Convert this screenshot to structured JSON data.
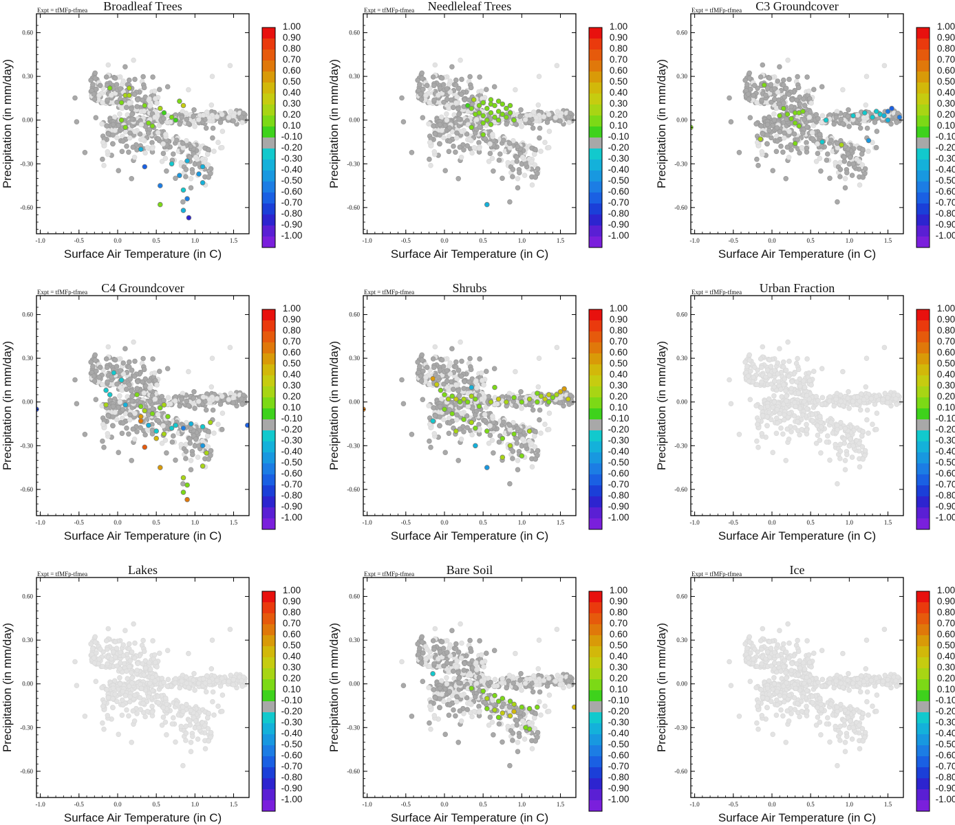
{
  "figure": {
    "experiment_label": "Expt = tfMFp-tfmea",
    "xlabel": "Surface Air Temperature (in C)",
    "ylabel": "Precipitation (in mm/day)",
    "x_ticks": [
      "-1.0",
      "-0.5",
      "0.0",
      "0.5",
      "1.0",
      "1.5"
    ],
    "y_ticks": [
      "0.60",
      "0.30",
      "0.00",
      "-0.30",
      "-0.60"
    ],
    "colorbar": {
      "labels": [
        "1.00",
        "0.90",
        "0.80",
        "0.70",
        "0.60",
        "0.50",
        "0.40",
        "0.30",
        "0.20",
        "0.10",
        "-0.10",
        "-0.20",
        "-0.30",
        "-0.40",
        "-0.50",
        "-0.60",
        "-0.70",
        "-0.80",
        "-0.90",
        "-1.00"
      ],
      "colors": [
        "#e8110e",
        "#ea3a0d",
        "#e65a0c",
        "#e0780a",
        "#d99a08",
        "#d2b80a",
        "#c6cc10",
        "#a8d514",
        "#7cd916",
        "#3ed21c",
        "#a8a8a8",
        "#12c9cd",
        "#14b1da",
        "#1898e0",
        "#1c7de4",
        "#1a60e3",
        "#1b3fd8",
        "#2d24cf",
        "#5a1fd4",
        "#7a1fdc"
      ]
    },
    "background_color": "#e3e3e3",
    "neutral_color": "#a9a9a9"
  },
  "chart_data": [
    {
      "type": "scatter",
      "title": "Broadleaf Trees",
      "xlabel": "Surface Air Temperature (in C)",
      "ylabel": "Precipitation (in mm/day)",
      "xlim": [
        -1.05,
        1.7
      ],
      "ylim": [
        -0.78,
        0.73
      ],
      "neutral_fraction": 0.65,
      "colored_points": [
        [
          0.15,
          0.22,
          0.35
        ],
        [
          -0.1,
          0.22,
          0.2
        ],
        [
          0.1,
          0.17,
          0.3
        ],
        [
          0.15,
          0.17,
          0.35
        ],
        [
          0.05,
          0.12,
          0.2
        ],
        [
          0.35,
          0.1,
          0.2
        ],
        [
          0.55,
          0.08,
          0.3
        ],
        [
          0.6,
          0.05,
          0.1
        ],
        [
          0.8,
          0.13,
          0.25
        ],
        [
          0.85,
          0.1,
          0.4
        ],
        [
          0.4,
          -0.02,
          0.2
        ],
        [
          0.7,
          0.02,
          0.2
        ],
        [
          0.75,
          0.0,
          0.1
        ],
        [
          0.45,
          -0.04,
          0.2
        ],
        [
          0.1,
          -0.05,
          0.2
        ],
        [
          0.05,
          0.0,
          0.2
        ],
        [
          0.3,
          -0.2,
          -0.3
        ],
        [
          0.35,
          -0.32,
          -0.6
        ],
        [
          0.7,
          -0.3,
          -0.2
        ],
        [
          0.9,
          -0.28,
          -0.3
        ],
        [
          1.1,
          -0.32,
          -0.3
        ],
        [
          1.05,
          -0.37,
          -0.4
        ],
        [
          0.8,
          -0.38,
          -0.4
        ],
        [
          1.1,
          -0.43,
          -0.3
        ],
        [
          0.55,
          -0.45,
          -0.5
        ],
        [
          0.85,
          -0.48,
          -0.2
        ],
        [
          0.9,
          -0.54,
          -0.5
        ],
        [
          0.55,
          -0.58,
          0.2
        ],
        [
          0.85,
          -0.62,
          -0.3
        ],
        [
          0.92,
          -0.67,
          -0.8
        ]
      ]
    },
    {
      "type": "scatter",
      "title": "Needleleaf Trees",
      "xlabel": "Surface Air Temperature (in C)",
      "ylabel": "Precipitation (in mm/day)",
      "xlim": [
        -1.05,
        1.7
      ],
      "ylim": [
        -0.78,
        0.73
      ],
      "neutral_fraction": 0.65,
      "colored_points": [
        [
          0.3,
          0.1,
          0.1
        ],
        [
          0.35,
          0.08,
          0.2
        ],
        [
          0.4,
          0.04,
          0.2
        ],
        [
          0.45,
          0.1,
          0.2
        ],
        [
          0.5,
          0.12,
          0.2
        ],
        [
          0.5,
          0.03,
          0.2
        ],
        [
          0.55,
          0.08,
          0.2
        ],
        [
          0.55,
          0.0,
          0.2
        ],
        [
          0.6,
          0.11,
          0.2
        ],
        [
          0.6,
          0.05,
          0.2
        ],
        [
          0.65,
          0.02,
          0.2
        ],
        [
          0.65,
          0.1,
          0.2
        ],
        [
          0.7,
          0.06,
          0.2
        ],
        [
          0.7,
          0.0,
          0.2
        ],
        [
          0.75,
          0.11,
          0.2
        ],
        [
          0.75,
          0.04,
          0.2
        ],
        [
          0.8,
          0.08,
          0.2
        ],
        [
          0.8,
          0.02,
          0.2
        ],
        [
          0.85,
          0.05,
          0.2
        ],
        [
          0.85,
          0.1,
          0.2
        ],
        [
          0.9,
          0.0,
          0.2
        ],
        [
          0.45,
          0.05,
          0.2
        ],
        [
          0.5,
          -0.02,
          0.2
        ],
        [
          0.6,
          -0.03,
          0.2
        ],
        [
          0.35,
          -0.05,
          0.2
        ],
        [
          0.5,
          -0.1,
          0.2
        ],
        [
          0.38,
          0.14,
          0.3
        ],
        [
          0.6,
          0.14,
          0.2
        ],
        [
          0.7,
          0.13,
          0.2
        ],
        [
          0.55,
          -0.58,
          -0.3
        ]
      ]
    },
    {
      "type": "scatter",
      "title": "C3 Groundcover",
      "xlabel": "Surface Air Temperature (in C)",
      "ylabel": "Precipitation (in mm/day)",
      "xlim": [
        -1.05,
        1.7
      ],
      "ylim": [
        -0.78,
        0.73
      ],
      "neutral_fraction": 0.78,
      "colored_points": [
        [
          -0.1,
          0.24,
          0.2
        ],
        [
          0.15,
          0.08,
          0.2
        ],
        [
          0.2,
          0.04,
          0.2
        ],
        [
          0.3,
          0.05,
          0.2
        ],
        [
          0.35,
          0.05,
          0.2
        ],
        [
          0.4,
          0.06,
          0.2
        ],
        [
          0.1,
          0.03,
          0.2
        ],
        [
          0.25,
          0.01,
          0.2
        ],
        [
          0.3,
          -0.02,
          0.2
        ],
        [
          0.35,
          -0.04,
          0.2
        ],
        [
          -0.15,
          -0.13,
          0.3
        ],
        [
          0.3,
          -0.16,
          0.2
        ],
        [
          0.9,
          -0.17,
          0.3
        ],
        [
          -1.05,
          -0.05,
          0.2
        ],
        [
          1.25,
          -0.14,
          -0.4
        ],
        [
          1.2,
          0.05,
          -0.2
        ],
        [
          1.3,
          0.02,
          -0.2
        ],
        [
          1.4,
          0.04,
          -0.2
        ],
        [
          1.45,
          0.03,
          -0.3
        ],
        [
          1.5,
          0.06,
          -0.5
        ],
        [
          1.55,
          0.08,
          -0.6
        ],
        [
          1.5,
          0.0,
          -0.3
        ],
        [
          1.65,
          0.02,
          -0.5
        ],
        [
          1.35,
          0.06,
          -0.2
        ],
        [
          1.05,
          0.03,
          -0.2
        ],
        [
          0.7,
          0.0,
          -0.2
        ],
        [
          0.65,
          -0.15,
          -0.2
        ]
      ]
    },
    {
      "type": "scatter",
      "title": "C4 Groundcover",
      "xlabel": "Surface Air Temperature (in C)",
      "ylabel": "Precipitation (in mm/day)",
      "xlim": [
        -1.05,
        1.7
      ],
      "ylim": [
        -0.78,
        0.73
      ],
      "neutral_fraction": 0.7,
      "colored_points": [
        [
          -0.15,
          0.08,
          -0.2
        ],
        [
          -0.05,
          0.2,
          -0.2
        ],
        [
          0.05,
          0.15,
          -0.2
        ],
        [
          -0.1,
          0.05,
          -0.2
        ],
        [
          -0.15,
          -0.02,
          0.3
        ],
        [
          0.1,
          -0.02,
          -0.3
        ],
        [
          0.25,
          0.05,
          0.2
        ],
        [
          0.3,
          -0.03,
          0.2
        ],
        [
          0.35,
          -0.06,
          0.3
        ],
        [
          0.3,
          -0.1,
          0.6
        ],
        [
          0.3,
          -0.13,
          0.7
        ],
        [
          0.45,
          -0.08,
          0.2
        ],
        [
          0.55,
          -0.04,
          0.2
        ],
        [
          0.6,
          -0.02,
          0.3
        ],
        [
          0.65,
          -0.1,
          0.2
        ],
        [
          0.4,
          -0.16,
          -0.3
        ],
        [
          0.5,
          -0.2,
          -0.2
        ],
        [
          0.6,
          -0.22,
          0.3
        ],
        [
          0.7,
          -0.18,
          -0.2
        ],
        [
          0.75,
          -0.16,
          -0.2
        ],
        [
          0.85,
          -0.18,
          -0.5
        ],
        [
          0.95,
          -0.15,
          -0.3
        ],
        [
          1.1,
          -0.17,
          -0.2
        ],
        [
          1.2,
          -0.14,
          0.3
        ],
        [
          1.1,
          -0.3,
          -0.4
        ],
        [
          1.15,
          -0.35,
          0.3
        ],
        [
          1.1,
          -0.44,
          0.3
        ],
        [
          0.85,
          -0.52,
          0.3
        ],
        [
          0.9,
          -0.57,
          0.2
        ],
        [
          0.85,
          -0.62,
          0.2
        ],
        [
          0.9,
          -0.67,
          0.7
        ],
        [
          0.5,
          -0.25,
          0.5
        ],
        [
          0.35,
          -0.31,
          0.8
        ],
        [
          0.55,
          -0.45,
          0.6
        ],
        [
          -1.05,
          -0.05,
          -0.7
        ],
        [
          1.68,
          -0.16,
          -0.6
        ]
      ]
    },
    {
      "type": "scatter",
      "title": "Shrubs",
      "xlabel": "Surface Air Temperature (in C)",
      "ylabel": "Precipitation (in mm/day)",
      "xlim": [
        -1.05,
        1.7
      ],
      "ylim": [
        -0.78,
        0.73
      ],
      "neutral_fraction": 0.66,
      "colored_points": [
        [
          -0.15,
          0.16,
          0.6
        ],
        [
          -0.1,
          0.12,
          0.4
        ],
        [
          -0.05,
          0.08,
          0.2
        ],
        [
          0.0,
          0.05,
          0.2
        ],
        [
          0.05,
          0.02,
          0.3
        ],
        [
          0.1,
          0.04,
          0.2
        ],
        [
          0.15,
          0.02,
          0.4
        ],
        [
          0.2,
          0.0,
          0.2
        ],
        [
          0.25,
          0.02,
          0.3
        ],
        [
          0.3,
          0.0,
          0.2
        ],
        [
          0.35,
          0.04,
          0.3
        ],
        [
          0.4,
          0.02,
          0.2
        ],
        [
          0.0,
          -0.05,
          0.2
        ],
        [
          0.1,
          -0.08,
          0.2
        ],
        [
          0.25,
          -0.12,
          0.2
        ],
        [
          0.35,
          -0.14,
          0.3
        ],
        [
          0.4,
          -0.18,
          0.2
        ],
        [
          0.45,
          -0.03,
          0.2
        ],
        [
          0.6,
          0.0,
          0.3
        ],
        [
          0.7,
          0.02,
          0.4
        ],
        [
          0.8,
          0.0,
          0.3
        ],
        [
          0.9,
          0.03,
          0.2
        ],
        [
          1.0,
          0.0,
          0.2
        ],
        [
          1.1,
          0.02,
          0.3
        ],
        [
          1.2,
          0.0,
          0.2
        ],
        [
          1.25,
          0.04,
          0.3
        ],
        [
          1.3,
          0.02,
          0.4
        ],
        [
          1.35,
          0.05,
          0.4
        ],
        [
          1.4,
          0.03,
          0.2
        ],
        [
          1.45,
          0.05,
          0.3
        ],
        [
          1.5,
          0.07,
          0.5
        ],
        [
          1.55,
          0.09,
          0.6
        ],
        [
          1.6,
          0.02,
          0.4
        ],
        [
          1.2,
          0.06,
          0.2
        ],
        [
          1.35,
          0.0,
          0.2
        ],
        [
          0.65,
          0.1,
          0.2
        ],
        [
          0.35,
          0.1,
          -0.3
        ],
        [
          -0.15,
          -0.13,
          -0.2
        ],
        [
          0.15,
          -0.2,
          0.3
        ],
        [
          0.4,
          -0.3,
          -0.3
        ],
        [
          0.55,
          -0.2,
          0.2
        ],
        [
          0.75,
          -0.25,
          0.2
        ],
        [
          0.9,
          -0.22,
          0.2
        ],
        [
          1.1,
          -0.2,
          0.3
        ],
        [
          0.85,
          -0.3,
          0.3
        ],
        [
          1.0,
          -0.37,
          0.2
        ],
        [
          0.75,
          -0.38,
          0.3
        ],
        [
          0.55,
          -0.45,
          -0.4
        ],
        [
          -1.05,
          -0.05,
          0.7
        ]
      ]
    },
    {
      "type": "scatter",
      "title": "Urban Fraction",
      "xlabel": "Surface Air Temperature (in C)",
      "ylabel": "Precipitation (in mm/day)",
      "xlim": [
        -1.05,
        1.7
      ],
      "ylim": [
        -0.78,
        0.73
      ],
      "neutral_fraction": 0,
      "colored_points": []
    },
    {
      "type": "scatter",
      "title": "Lakes",
      "xlabel": "Surface Air Temperature (in C)",
      "ylabel": "Precipitation (in mm/day)",
      "xlim": [
        -1.05,
        1.7
      ],
      "ylim": [
        -0.78,
        0.73
      ],
      "neutral_fraction": 0,
      "colored_points": []
    },
    {
      "type": "scatter",
      "title": "Bare Soil",
      "xlabel": "Surface Air Temperature (in C)",
      "ylabel": "Precipitation (in mm/day)",
      "xlim": [
        -1.05,
        1.7
      ],
      "ylim": [
        -0.78,
        0.73
      ],
      "neutral_fraction": 0.6,
      "colored_points": [
        [
          -0.15,
          0.07,
          -0.2
        ],
        [
          0.35,
          -0.03,
          0.2
        ],
        [
          0.5,
          -0.05,
          0.2
        ],
        [
          0.55,
          -0.1,
          0.3
        ],
        [
          0.65,
          -0.08,
          0.2
        ],
        [
          0.7,
          -0.12,
          0.2
        ],
        [
          0.75,
          -0.1,
          0.2
        ],
        [
          0.85,
          -0.12,
          0.2
        ],
        [
          0.9,
          -0.14,
          0.3
        ],
        [
          1.0,
          -0.16,
          0.2
        ],
        [
          1.1,
          -0.17,
          0.2
        ],
        [
          1.2,
          -0.16,
          0.2
        ],
        [
          0.55,
          -0.17,
          0.2
        ],
        [
          0.65,
          -0.18,
          0.3
        ],
        [
          0.75,
          -0.2,
          0.4
        ],
        [
          0.85,
          -0.22,
          0.4
        ],
        [
          0.9,
          -0.19,
          0.5
        ],
        [
          0.7,
          -0.23,
          0.2
        ],
        [
          1.1,
          -0.31,
          0.2
        ],
        [
          1.05,
          -0.3,
          0.2
        ],
        [
          1.68,
          -0.16,
          0.5
        ]
      ]
    },
    {
      "type": "scatter",
      "title": "Ice",
      "xlabel": "Surface Air Temperature (in C)",
      "ylabel": "Precipitation (in mm/day)",
      "xlim": [
        -1.05,
        1.7
      ],
      "ylim": [
        -0.78,
        0.73
      ],
      "neutral_fraction": 0,
      "colored_points": []
    }
  ]
}
